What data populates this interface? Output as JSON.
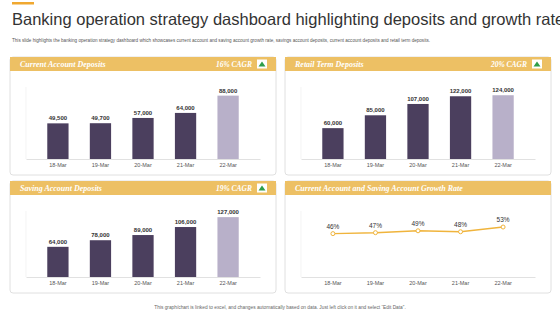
{
  "title": "Banking operation strategy dashboard highlighting deposits and growth rate",
  "subtitle": "This slide highlights the banking operation strategy dashboard which showcases current account and saving account growth rate, savings account deposits, current account deposits and retail term deposits.",
  "footnote": "This graph/chart is linked to excel, and changes automatically based on data. Just left click on it and select “Edit Data”.",
  "chart_data": [
    {
      "type": "bar",
      "title": "Current  Account Deposits",
      "annotation": "16% CAGR",
      "categories": [
        "18-Mar",
        "19-Mar",
        "20-Mar",
        "21-Mar",
        "22-Mar"
      ],
      "values": [
        49500,
        49700,
        57000,
        64000,
        88000
      ],
      "value_labels": [
        "49,500",
        "49,700",
        "57,000",
        "64,000",
        "88,000"
      ],
      "colors": [
        "#4b3f5e",
        "#4b3f5e",
        "#4b3f5e",
        "#4b3f5e",
        "#b8b0c9"
      ],
      "ylim": [
        0,
        100000
      ],
      "data_labels": true,
      "tick_labels": "x"
    },
    {
      "type": "bar",
      "title": "Retail Term Deposits",
      "annotation": "20% CAGR",
      "categories": [
        "18-Mar",
        "19-Mar",
        "20-Mar",
        "21-Mar",
        "22-Mar"
      ],
      "values": [
        60000,
        85000,
        107000,
        122000,
        124000
      ],
      "value_labels": [
        "60,000",
        "85,000",
        "107,000",
        "122,000",
        "124,000"
      ],
      "colors": [
        "#4b3f5e",
        "#4b3f5e",
        "#4b3f5e",
        "#4b3f5e",
        "#b8b0c9"
      ],
      "ylim": [
        0,
        140000
      ],
      "data_labels": true,
      "tick_labels": "x"
    },
    {
      "type": "bar",
      "title": "Saving Account Deposits",
      "annotation": "19% CAGR",
      "categories": [
        "18-Mar",
        "19-Mar",
        "20-Mar",
        "21-Mar",
        "22-Mar"
      ],
      "values": [
        64000,
        78000,
        89000,
        106000,
        127000
      ],
      "value_labels": [
        "64,000",
        "78,000",
        "89,000",
        "106,000",
        "127,000"
      ],
      "colors": [
        "#4b3f5e",
        "#4b3f5e",
        "#4b3f5e",
        "#4b3f5e",
        "#b8b0c9"
      ],
      "ylim": [
        0,
        140000
      ],
      "data_labels": true,
      "tick_labels": "x"
    },
    {
      "type": "line",
      "title": "Current Account and Saving Account Growth Rate",
      "categories": [
        "18-Mar",
        "19-Mar",
        "20-Mar",
        "21-Mar",
        "22-Mar"
      ],
      "values": [
        46,
        47,
        49,
        48,
        53
      ],
      "value_labels": [
        "46%",
        "47%",
        "49%",
        "48%",
        "53%"
      ],
      "color": "#f0b43c",
      "marker": "circle",
      "ylim": [
        0,
        70
      ],
      "data_labels": true,
      "tick_labels": "x"
    }
  ]
}
